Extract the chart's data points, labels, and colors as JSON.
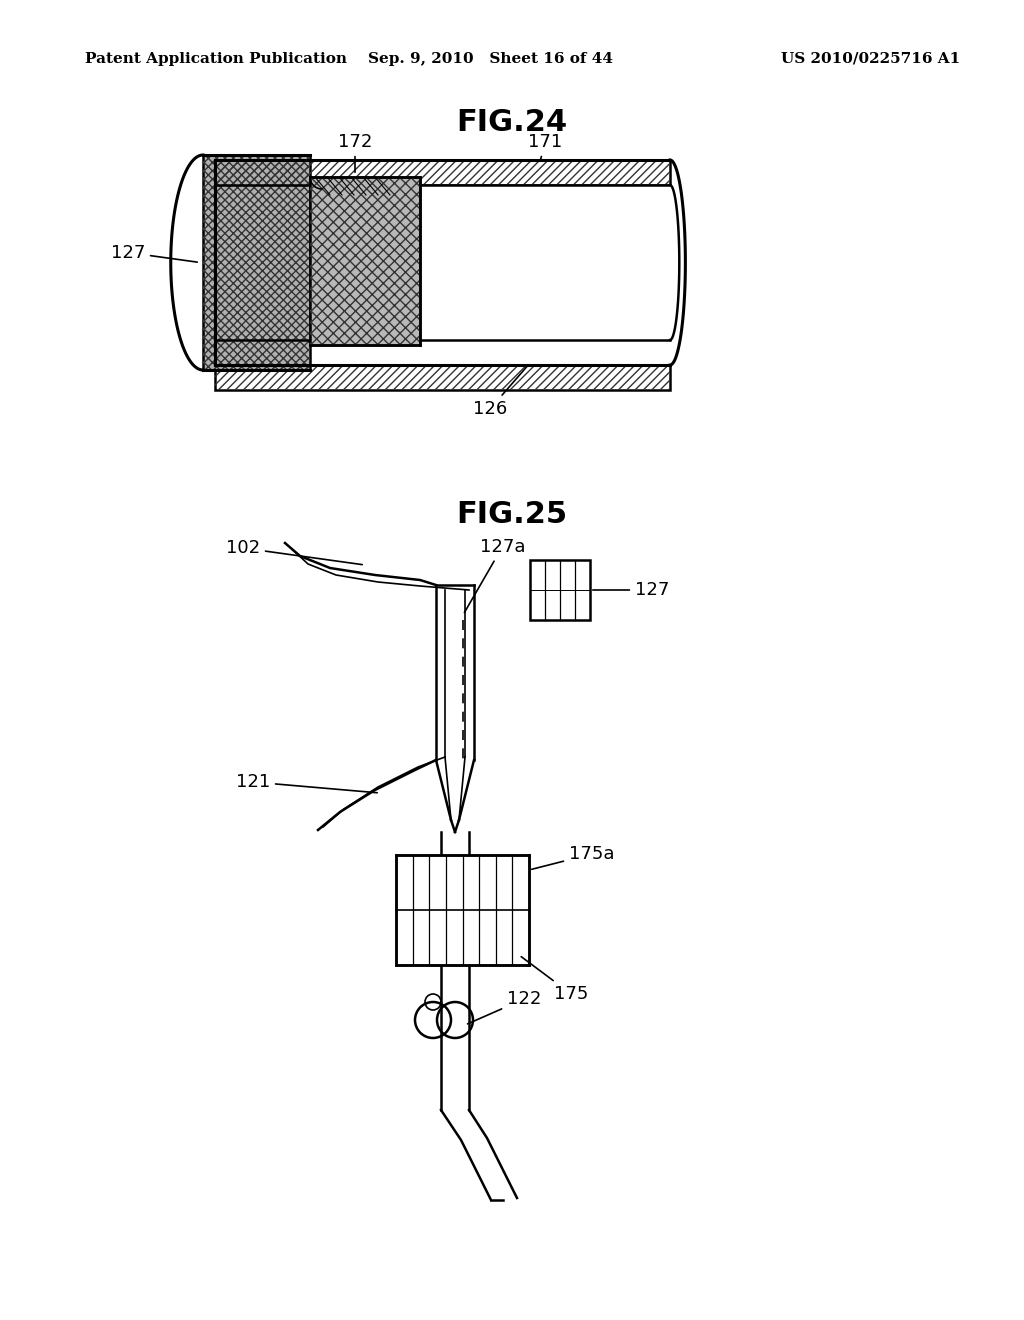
{
  "fig_title1": "FIG.24",
  "fig_title2": "FIG.25",
  "header_left": "Patent Application Publication",
  "header_mid": "Sep. 9, 2010   Sheet 16 of 44",
  "header_right": "US 2010/0225716 A1",
  "bg_color": "#ffffff",
  "line_color": "#000000",
  "gray_light": "#cccccc",
  "gray_mid": "#aaaaaa"
}
